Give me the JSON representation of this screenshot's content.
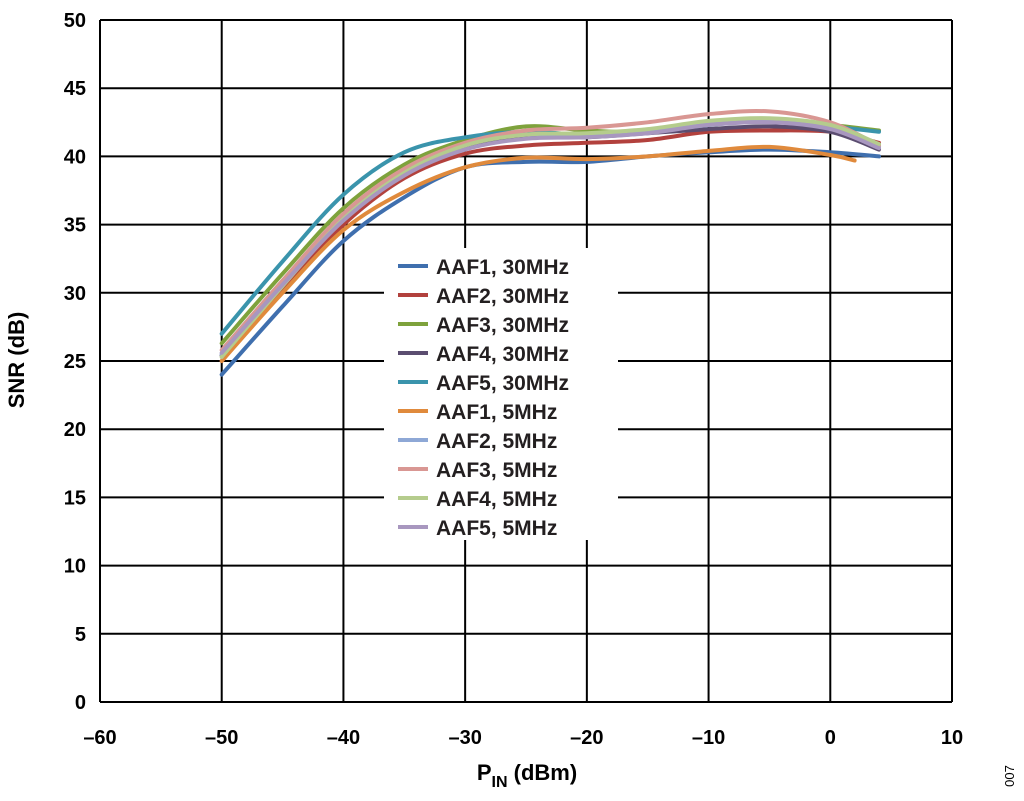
{
  "chart_data": {
    "type": "line",
    "xlabel": "P",
    "xlabel_sub": "IN",
    "xlabel_unit": " (dBm)",
    "ylabel": "SNR (dB)",
    "xlim": [
      -60,
      10
    ],
    "ylim": [
      0,
      50
    ],
    "x_ticks": [
      -60,
      -50,
      -40,
      -30,
      -20,
      -10,
      0,
      10
    ],
    "y_ticks": [
      0,
      5,
      10,
      15,
      20,
      25,
      30,
      35,
      40,
      45,
      50
    ],
    "x_tick_labels": [
      "–60",
      "–50",
      "–40",
      "–30",
      "–20",
      "–10",
      "0",
      "10"
    ],
    "y_tick_labels": [
      "0",
      "5",
      "10",
      "15",
      "20",
      "25",
      "30",
      "35",
      "40",
      "45",
      "50"
    ],
    "grid": true,
    "legend_position": "center",
    "figure_id": "007",
    "series": [
      {
        "name": "AAF1, 30MHz",
        "color": "#3f6fae",
        "x": [
          -50,
          -45,
          -40,
          -35,
          -30,
          -25,
          -20,
          -15,
          -10,
          -5,
          0,
          4
        ],
        "y": [
          24.0,
          29.0,
          33.8,
          37.0,
          39.2,
          39.6,
          39.6,
          40.0,
          40.3,
          40.5,
          40.3,
          40.0
        ]
      },
      {
        "name": "AAF2, 30MHz",
        "color": "#b2413d",
        "x": [
          -50,
          -45,
          -40,
          -35,
          -30,
          -25,
          -20,
          -15,
          -10,
          -5,
          0,
          4
        ],
        "y": [
          25.0,
          30.2,
          35.0,
          38.4,
          40.2,
          40.8,
          41.0,
          41.2,
          41.8,
          41.9,
          41.8,
          41.0
        ]
      },
      {
        "name": "AAF3, 30MHz",
        "color": "#7ea23c",
        "x": [
          -50,
          -45,
          -40,
          -35,
          -30,
          -25,
          -20,
          -15,
          -10,
          -5,
          0,
          4
        ],
        "y": [
          26.3,
          31.4,
          36.2,
          39.4,
          41.2,
          42.2,
          41.9,
          41.8,
          42.4,
          42.6,
          42.3,
          41.9
        ]
      },
      {
        "name": "AAF4, 30MHz",
        "color": "#5b4d70",
        "x": [
          -50,
          -45,
          -40,
          -35,
          -30,
          -25,
          -20,
          -15,
          -10,
          -5,
          0,
          4
        ],
        "y": [
          25.4,
          30.6,
          35.5,
          38.7,
          40.7,
          41.4,
          41.4,
          41.7,
          42.0,
          42.2,
          41.8,
          40.5
        ]
      },
      {
        "name": "AAF5, 30MHz",
        "color": "#3a94ac",
        "x": [
          -50,
          -45,
          -40,
          -35,
          -30,
          -25,
          -20,
          -15,
          -10,
          -5,
          0,
          4
        ],
        "y": [
          27.0,
          32.3,
          37.2,
          40.3,
          41.4,
          41.8,
          41.6,
          41.8,
          42.3,
          42.6,
          42.2,
          41.8
        ]
      },
      {
        "name": "AAF1, 5MHz",
        "color": "#e08a3c",
        "x": [
          -50,
          -45,
          -40,
          -35,
          -30,
          -25,
          -20,
          -15,
          -10,
          -5,
          0,
          2
        ],
        "y": [
          25.0,
          30.0,
          34.6,
          37.4,
          39.2,
          39.9,
          39.8,
          40.0,
          40.4,
          40.7,
          40.1,
          39.7
        ]
      },
      {
        "name": "AAF2, 5MHz",
        "color": "#8ea8d6",
        "x": [
          -50,
          -45,
          -40,
          -35,
          -30,
          -25,
          -20,
          -15,
          -10,
          -5,
          0,
          4
        ],
        "y": [
          25.5,
          30.7,
          35.6,
          38.9,
          40.9,
          41.6,
          41.5,
          41.8,
          42.4,
          42.6,
          42.2,
          40.7
        ]
      },
      {
        "name": "AAF3, 5MHz",
        "color": "#d99793",
        "x": [
          -50,
          -45,
          -40,
          -35,
          -30,
          -25,
          -20,
          -15,
          -10,
          -5,
          0,
          4
        ],
        "y": [
          25.8,
          30.9,
          35.8,
          39.1,
          41.0,
          41.9,
          42.1,
          42.5,
          43.1,
          43.3,
          42.5,
          40.8
        ]
      },
      {
        "name": "AAF4, 5MHz",
        "color": "#b5cc8d",
        "x": [
          -50,
          -45,
          -40,
          -35,
          -30,
          -25,
          -20,
          -15,
          -10,
          -5,
          0,
          4
        ],
        "y": [
          25.3,
          30.5,
          35.4,
          38.8,
          40.8,
          41.6,
          41.7,
          42.0,
          42.6,
          42.8,
          42.3,
          40.9
        ]
      },
      {
        "name": "AAF5, 5MHz",
        "color": "#a897bf",
        "x": [
          -50,
          -45,
          -40,
          -35,
          -30,
          -25,
          -20,
          -15,
          -10,
          -5,
          0,
          4
        ],
        "y": [
          25.6,
          30.6,
          35.3,
          38.6,
          40.5,
          41.3,
          41.4,
          41.7,
          42.3,
          42.5,
          42.0,
          40.6
        ]
      }
    ]
  }
}
